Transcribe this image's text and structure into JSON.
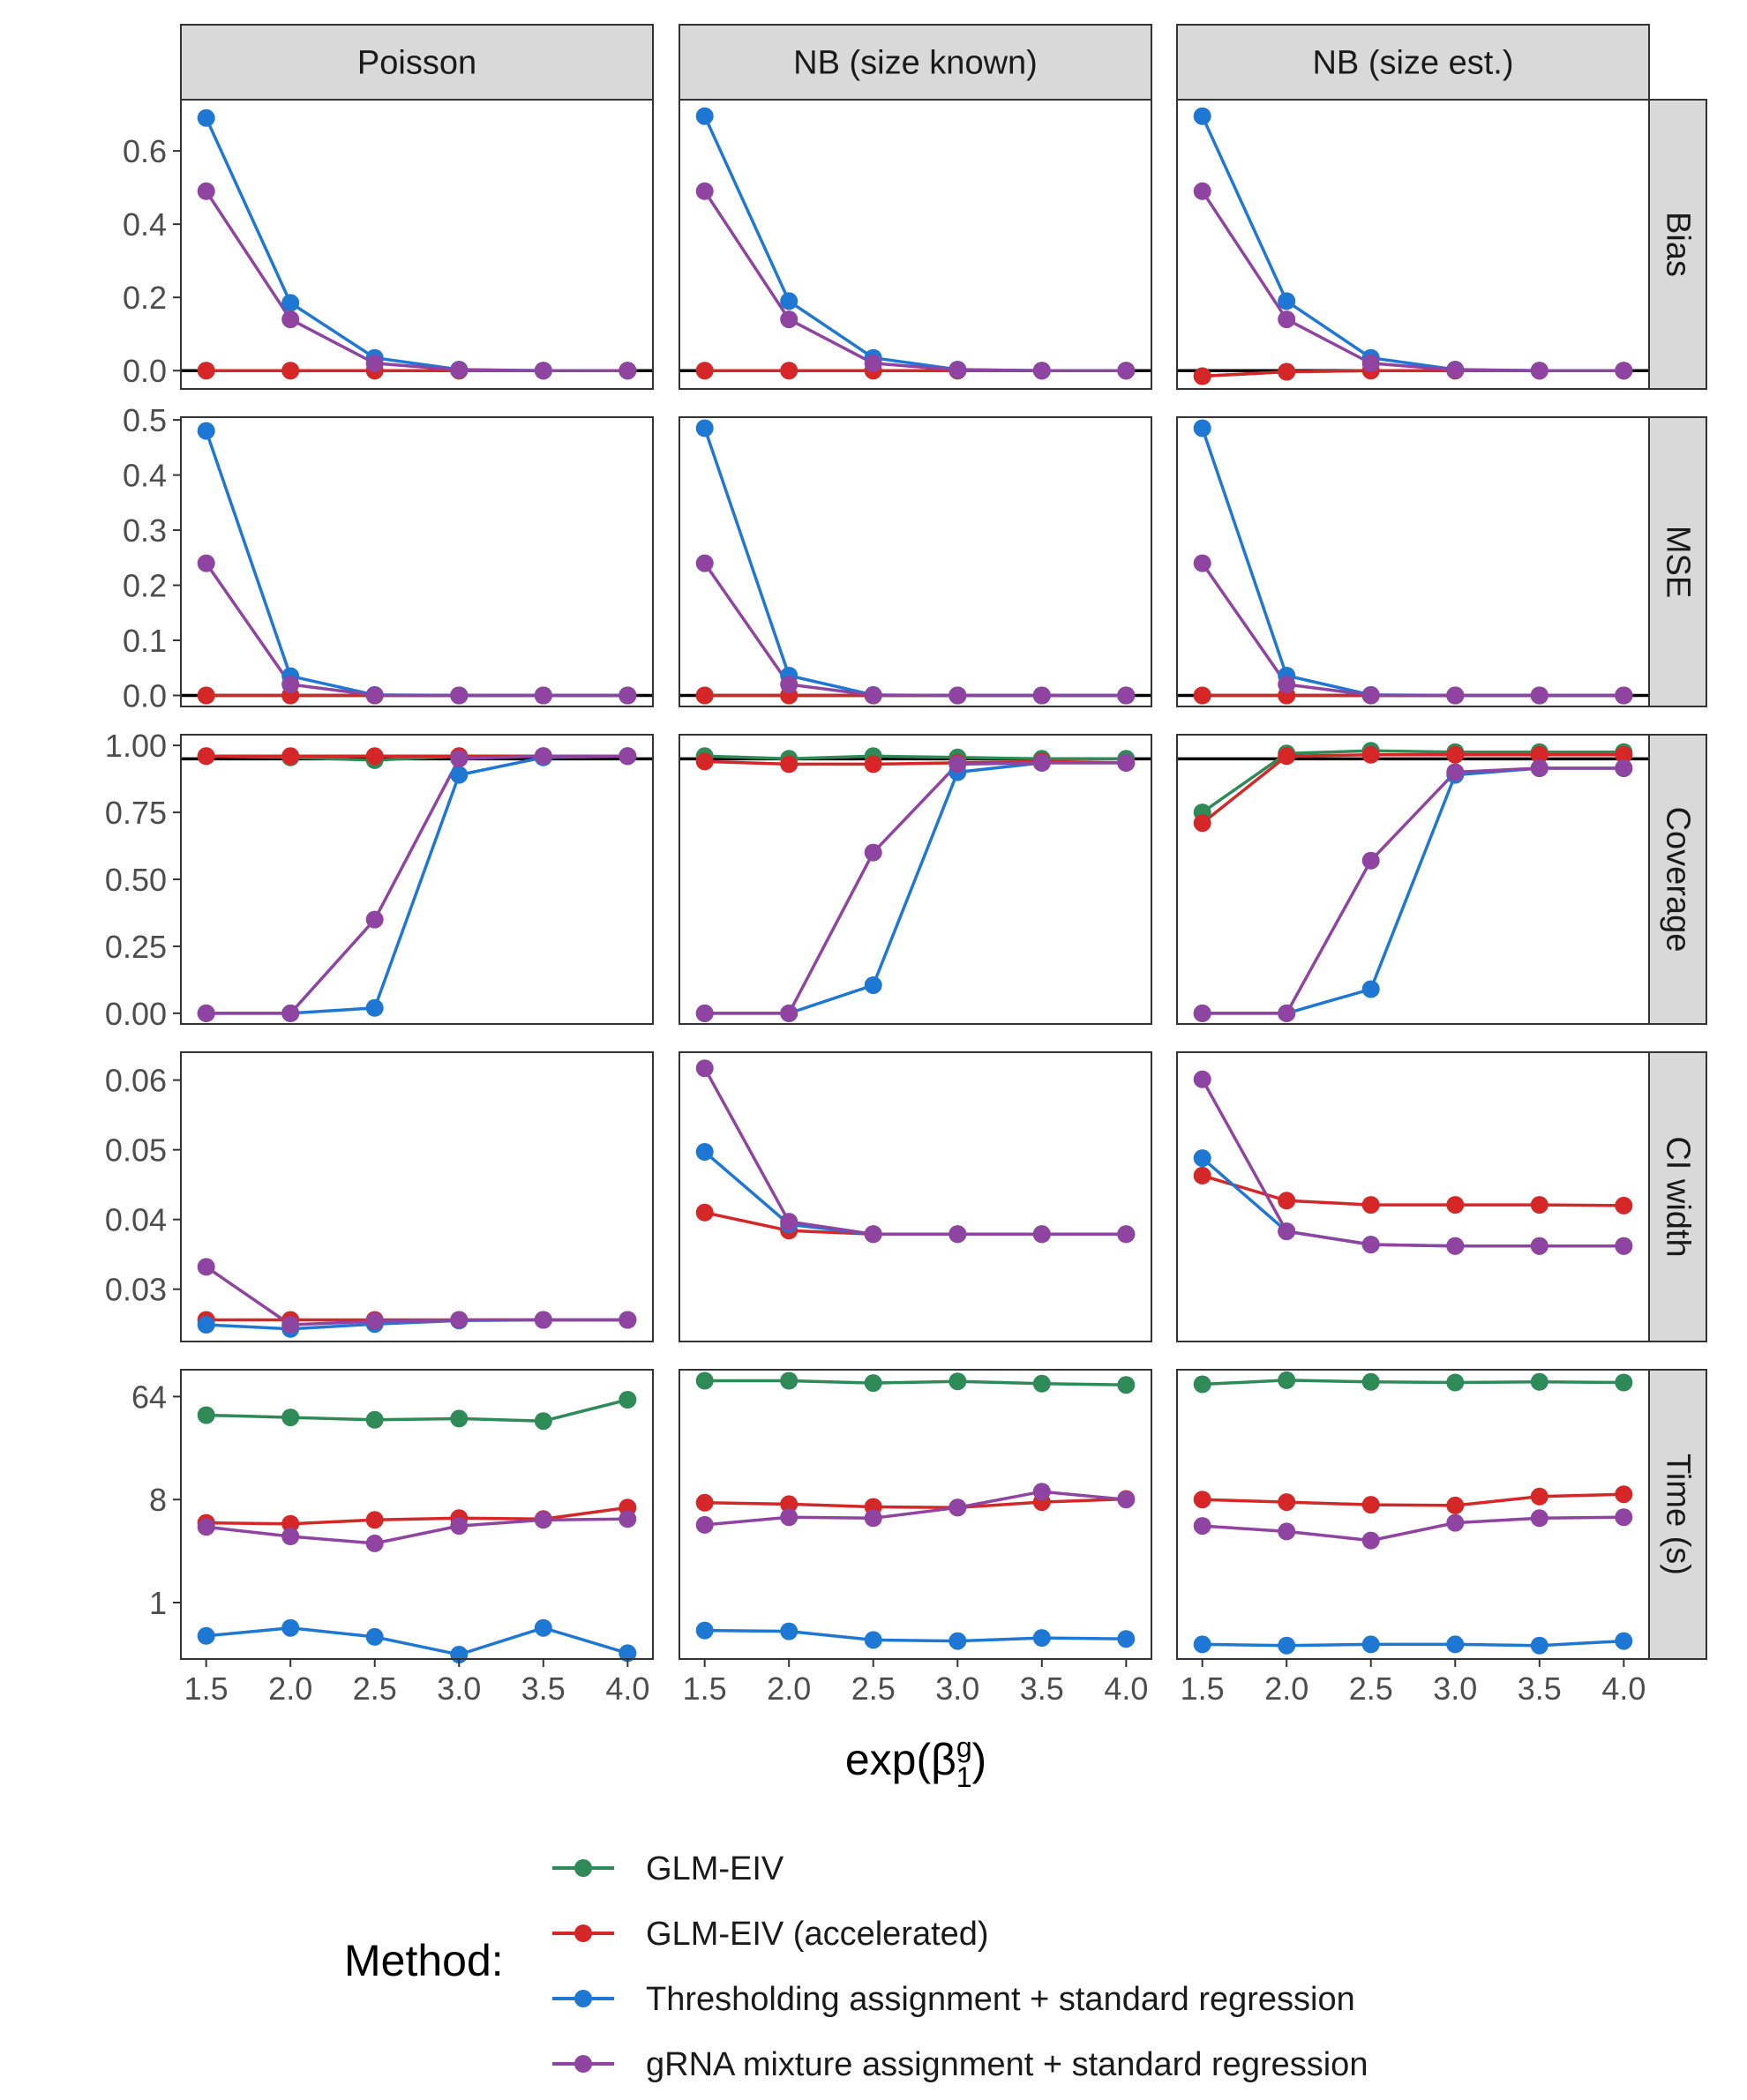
{
  "chart_data": {
    "type": "line",
    "x": [
      1.5,
      2.0,
      2.5,
      3.0,
      3.5,
      4.0
    ],
    "x_tick_labels": [
      "1.5",
      "2.0",
      "2.5",
      "3.0",
      "3.5",
      "4.0"
    ],
    "xlim": [
      1.35,
      4.15
    ],
    "xlabel_main": "exp(β",
    "xlabel_sup": "g",
    "xlabel_sub": "1",
    "xlabel_close": ")",
    "columns": [
      "Poisson",
      "NB (size known)",
      "NB (size est.)"
    ],
    "methods": [
      {
        "key": "glmeiv",
        "name": "GLM-EIV",
        "color": "#2e8b57"
      },
      {
        "key": "glmeiv_acc",
        "name": "GLM-EIV (accelerated)",
        "color": "#d62728"
      },
      {
        "key": "thresh",
        "name": "Thresholding assignment + standard regression",
        "color": "#1f77d4"
      },
      {
        "key": "mixture",
        "name": "gRNA mixture assignment + standard regression",
        "color": "#8e44a0"
      }
    ],
    "legend_title": "Method:",
    "legend_position": "bottom",
    "rows": [
      {
        "name": "Bias",
        "scale": "linear",
        "ylim": [
          -0.05,
          0.74
        ],
        "ticks": [
          0.0,
          0.2,
          0.4,
          0.6
        ],
        "tick_labels": [
          "0.0",
          "0.2",
          "0.4",
          "0.6"
        ],
        "hline": 0.0,
        "panels": [
          {
            "glmeiv": [
              0,
              0,
              0,
              0,
              0,
              0
            ],
            "glmeiv_acc": [
              0,
              0,
              0,
              0,
              0,
              0
            ],
            "thresh": [
              0.69,
              0.185,
              0.035,
              0.003,
              0,
              0
            ],
            "mixture": [
              0.49,
              0.14,
              0.02,
              0.002,
              0,
              0
            ]
          },
          {
            "glmeiv": [
              0,
              0,
              0,
              0,
              0,
              0
            ],
            "glmeiv_acc": [
              0,
              0,
              0,
              0,
              0,
              0
            ],
            "thresh": [
              0.695,
              0.19,
              0.035,
              0.003,
              0,
              0
            ],
            "mixture": [
              0.49,
              0.14,
              0.02,
              0.002,
              0,
              0
            ]
          },
          {
            "glmeiv": [
              -0.015,
              -0.003,
              0,
              0,
              0,
              0
            ],
            "glmeiv_acc": [
              -0.015,
              -0.003,
              0,
              0,
              0,
              0
            ],
            "thresh": [
              0.695,
              0.19,
              0.035,
              0.003,
              0,
              0
            ],
            "mixture": [
              0.49,
              0.14,
              0.02,
              0.002,
              0,
              0
            ]
          }
        ]
      },
      {
        "name": "MSE",
        "scale": "linear",
        "ylim": [
          -0.02,
          0.505
        ],
        "ticks": [
          0.0,
          0.1,
          0.2,
          0.3,
          0.4,
          0.5
        ],
        "tick_labels": [
          "0.0",
          "0.1",
          "0.2",
          "0.3",
          "0.4",
          "0.5"
        ],
        "hline": 0.0,
        "panels": [
          {
            "glmeiv": [
              0,
              0,
              0,
              0,
              0,
              0
            ],
            "glmeiv_acc": [
              0,
              0,
              0,
              0,
              0,
              0
            ],
            "thresh": [
              0.48,
              0.035,
              0.001,
              0,
              0,
              0
            ],
            "mixture": [
              0.24,
              0.02,
              0.0005,
              0,
              0,
              0
            ]
          },
          {
            "glmeiv": [
              0,
              0,
              0,
              0,
              0,
              0
            ],
            "glmeiv_acc": [
              0,
              0,
              0,
              0,
              0,
              0
            ],
            "thresh": [
              0.485,
              0.036,
              0.001,
              0,
              0,
              0
            ],
            "mixture": [
              0.24,
              0.02,
              0.0005,
              0,
              0,
              0
            ]
          },
          {
            "glmeiv": [
              0,
              0,
              0,
              0,
              0,
              0
            ],
            "glmeiv_acc": [
              0,
              0,
              0,
              0,
              0,
              0
            ],
            "thresh": [
              0.485,
              0.036,
              0.001,
              0,
              0,
              0
            ],
            "mixture": [
              0.24,
              0.02,
              0.0005,
              0,
              0,
              0
            ]
          }
        ]
      },
      {
        "name": "Coverage",
        "scale": "linear",
        "ylim": [
          -0.04,
          1.04
        ],
        "ticks": [
          0.0,
          0.25,
          0.5,
          0.75,
          1.0
        ],
        "tick_labels": [
          "0.00",
          "0.25",
          "0.50",
          "0.75",
          "1.00"
        ],
        "hline": 0.95,
        "panels": [
          {
            "glmeiv": [
              0.96,
              0.955,
              0.945,
              0.96,
              0.96,
              0.96
            ],
            "glmeiv_acc": [
              0.96,
              0.96,
              0.96,
              0.96,
              0.96,
              0.96
            ],
            "thresh": [
              0,
              0,
              0.02,
              0.89,
              0.955,
              0.96
            ],
            "mixture": [
              0,
              0,
              0.35,
              0.95,
              0.96,
              0.96
            ]
          },
          {
            "glmeiv": [
              0.96,
              0.95,
              0.96,
              0.955,
              0.95,
              0.95
            ],
            "glmeiv_acc": [
              0.94,
              0.93,
              0.93,
              0.935,
              0.94,
              0.935
            ],
            "thresh": [
              0,
              0,
              0.105,
              0.9,
              0.935,
              0.935
            ],
            "mixture": [
              0,
              0,
              0.6,
              0.93,
              0.935,
              0.935
            ]
          },
          {
            "glmeiv": [
              0.75,
              0.97,
              0.98,
              0.975,
              0.975,
              0.975
            ],
            "glmeiv_acc": [
              0.71,
              0.96,
              0.965,
              0.965,
              0.965,
              0.965
            ],
            "thresh": [
              0,
              0,
              0.09,
              0.89,
              0.915,
              0.915
            ],
            "mixture": [
              0,
              0,
              0.57,
              0.9,
              0.915,
              0.915
            ]
          }
        ]
      },
      {
        "name": "CI width",
        "scale": "linear",
        "ylim": [
          0.0225,
          0.064
        ],
        "ticks": [
          0.03,
          0.04,
          0.05,
          0.06
        ],
        "tick_labels": [
          "0.03",
          "0.04",
          "0.05",
          "0.06"
        ],
        "hline": null,
        "panels": [
          {
            "glmeiv": null,
            "glmeiv_acc": [
              0.0256,
              0.0256,
              0.0256,
              0.0256,
              0.0256,
              0.0256
            ],
            "thresh": [
              0.0249,
              0.0243,
              0.025,
              0.0255,
              0.0256,
              0.0256
            ],
            "mixture": [
              0.0332,
              0.0249,
              0.0254,
              0.0256,
              0.0256,
              0.0256
            ]
          },
          {
            "glmeiv": null,
            "glmeiv_acc": [
              0.041,
              0.0384,
              0.0379,
              0.0379,
              0.0379,
              0.0379
            ],
            "thresh": [
              0.0497,
              0.0393,
              0.0379,
              0.0379,
              0.0379,
              0.0379
            ],
            "mixture": [
              0.0617,
              0.0397,
              0.0379,
              0.0379,
              0.0379,
              0.0379
            ]
          },
          {
            "glmeiv": null,
            "glmeiv_acc": [
              0.0463,
              0.0427,
              0.0421,
              0.0421,
              0.0421,
              0.042
            ],
            "thresh": [
              0.0488,
              0.0383,
              0.0364,
              0.0362,
              0.0362,
              0.0362
            ],
            "mixture": [
              0.0601,
              0.0383,
              0.0364,
              0.0362,
              0.0362,
              0.0362
            ]
          }
        ]
      },
      {
        "name": "Time (s)",
        "scale": "log2",
        "ylim": [
          0.32,
          110
        ],
        "ticks": [
          1,
          8,
          64
        ],
        "tick_labels": [
          "1",
          "8",
          "64"
        ],
        "hline": null,
        "panels": [
          {
            "glmeiv": [
              44,
              42,
              40,
              41,
              39,
              60
            ],
            "glmeiv_acc": [
              5.0,
              4.9,
              5.3,
              5.5,
              5.4,
              6.8
            ],
            "thresh": [
              0.51,
              0.6,
              0.5,
              0.35,
              0.6,
              0.36
            ],
            "mixture": [
              4.6,
              3.8,
              3.3,
              4.7,
              5.3,
              5.4
            ]
          },
          {
            "glmeiv": [
              88,
              88,
              84,
              87,
              83,
              81
            ],
            "glmeiv_acc": [
              7.5,
              7.3,
              6.9,
              6.8,
              7.6,
              8.1
            ],
            "thresh": [
              0.57,
              0.56,
              0.47,
              0.46,
              0.49,
              0.48
            ],
            "mixture": [
              4.8,
              5.6,
              5.5,
              6.8,
              9.4,
              8.0
            ]
          },
          {
            "glmeiv": [
              82,
              89,
              86,
              85,
              86,
              85
            ],
            "glmeiv_acc": [
              8.0,
              7.6,
              7.2,
              7.1,
              8.5,
              8.9
            ],
            "thresh": [
              0.43,
              0.42,
              0.43,
              0.43,
              0.42,
              0.46
            ],
            "mixture": [
              4.7,
              4.2,
              3.5,
              5.0,
              5.5,
              5.6
            ]
          }
        ]
      }
    ],
    "error_bars": [
      {
        "row": 2,
        "col": 0,
        "method": "mixture",
        "x": 2.5,
        "lo": 0.32,
        "hi": 0.38
      },
      {
        "row": 2,
        "col": 1,
        "method": "mixture",
        "x": 2.5,
        "lo": 0.57,
        "hi": 0.63
      },
      {
        "row": 2,
        "col": 2,
        "method": "mixture",
        "x": 2.5,
        "lo": 0.54,
        "hi": 0.6
      },
      {
        "row": 2,
        "col": 2,
        "method": "glmeiv",
        "x": 1.5,
        "lo": 0.72,
        "hi": 0.78
      },
      {
        "row": 2,
        "col": 2,
        "method": "glmeiv_acc",
        "x": 1.5,
        "lo": 0.68,
        "hi": 0.74
      }
    ]
  }
}
